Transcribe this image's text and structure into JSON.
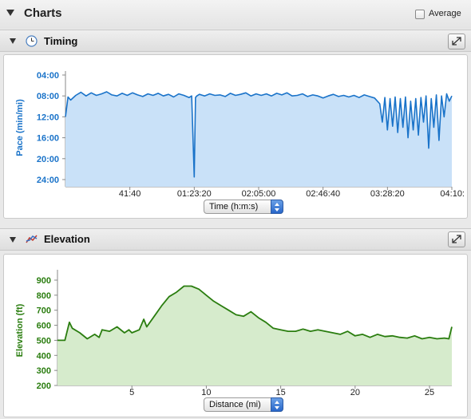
{
  "header": {
    "title": "Charts",
    "average_label": "Average",
    "average_checked": false
  },
  "timing": {
    "title": "Timing",
    "icon": "clock-icon",
    "axis_select": "Time (h:m:s)",
    "color": "#1a73c9",
    "fill": "#c9e1f8"
  },
  "elevation": {
    "title": "Elevation",
    "icon": "elevation-graph-icon",
    "axis_select": "Distance (mi)",
    "color": "#2a7d0f",
    "fill": "#d6ebcc"
  },
  "chart_data": [
    {
      "type": "line",
      "name": "timing",
      "ylabel": "Pace (min/mi)",
      "y_ticks": [
        "04:00",
        "08:00",
        "12:00",
        "16:00",
        "20:00",
        "24:00"
      ],
      "ylim_minutes": [
        4,
        24
      ],
      "y_inverted": true,
      "x_ticks": [
        "41:40",
        "01:23:20",
        "02:05:00",
        "02:46:40",
        "03:28:20",
        "04:10:"
      ],
      "x_tick_seconds": [
        2500,
        5000,
        7500,
        10000,
        12500,
        15000
      ],
      "xlim_seconds": [
        0,
        15000
      ],
      "grid": false,
      "x": [
        0,
        100,
        200,
        400,
        600,
        800,
        1000,
        1200,
        1400,
        1600,
        1800,
        2000,
        2200,
        2400,
        2600,
        2800,
        3000,
        3200,
        3400,
        3600,
        3800,
        4000,
        4200,
        4400,
        4600,
        4800,
        4900,
        5000,
        5050,
        5100,
        5200,
        5400,
        5600,
        5800,
        6000,
        6200,
        6400,
        6600,
        6800,
        7000,
        7200,
        7400,
        7600,
        7800,
        8000,
        8200,
        8400,
        8600,
        8800,
        9000,
        9200,
        9400,
        9600,
        9800,
        10000,
        10200,
        10400,
        10600,
        10800,
        11000,
        11200,
        11400,
        11600,
        11800,
        12000,
        12200,
        12300,
        12400,
        12500,
        12600,
        12700,
        12800,
        12900,
        13000,
        13100,
        13200,
        13300,
        13400,
        13500,
        13600,
        13700,
        13800,
        13900,
        14000,
        14100,
        14200,
        14300,
        14400,
        14500,
        14600,
        14700,
        14800,
        14900,
        15000
      ],
      "y": [
        12.0,
        8.2,
        8.8,
        7.9,
        7.3,
        8.0,
        7.4,
        7.9,
        7.6,
        7.2,
        7.8,
        8.0,
        7.5,
        7.9,
        7.4,
        7.8,
        8.1,
        7.6,
        7.9,
        7.5,
        8.0,
        7.7,
        8.2,
        7.6,
        7.9,
        8.3,
        8.0,
        23.5,
        8.3,
        8.0,
        7.7,
        8.0,
        7.6,
        7.9,
        7.8,
        8.1,
        7.5,
        7.9,
        7.7,
        7.4,
        8.0,
        7.6,
        7.9,
        7.6,
        8.0,
        7.5,
        7.8,
        7.4,
        8.0,
        7.9,
        7.6,
        8.1,
        7.8,
        8.0,
        8.4,
        8.0,
        7.7,
        8.1,
        7.9,
        8.2,
        7.9,
        8.3,
        7.8,
        8.1,
        8.4,
        9.5,
        13.0,
        8.3,
        14.5,
        8.5,
        13.8,
        8.2,
        15.0,
        8.5,
        14.0,
        8.2,
        16.0,
        9.0,
        14.5,
        8.5,
        15.5,
        8.3,
        13.0,
        8.0,
        18.0,
        8.5,
        14.0,
        7.8,
        16.5,
        8.0,
        12.0,
        7.6,
        9.0,
        8.0
      ]
    },
    {
      "type": "area",
      "name": "elevation",
      "ylabel": "Elevation (ft)",
      "y_ticks": [
        200,
        300,
        400,
        500,
        600,
        700,
        800,
        900
      ],
      "ylim": [
        200,
        950
      ],
      "x_ticks": [
        5,
        10,
        15,
        20,
        25
      ],
      "xlim": [
        0,
        26.5
      ],
      "grid": false,
      "x": [
        0,
        0.5,
        0.8,
        1.0,
        1.5,
        2.0,
        2.5,
        2.8,
        3.0,
        3.5,
        4.0,
        4.5,
        4.8,
        5.0,
        5.5,
        5.8,
        6.0,
        6.5,
        7.0,
        7.5,
        8.0,
        8.5,
        9.0,
        9.5,
        10.0,
        10.5,
        11.0,
        11.5,
        12.0,
        12.5,
        13.0,
        13.5,
        14.0,
        14.5,
        15.0,
        15.5,
        16.0,
        16.5,
        17.0,
        17.5,
        18.0,
        18.5,
        19.0,
        19.5,
        20.0,
        20.5,
        21.0,
        21.5,
        22.0,
        22.5,
        23.0,
        23.5,
        24.0,
        24.5,
        25.0,
        25.5,
        26.0,
        26.3,
        26.5
      ],
      "y": [
        500,
        500,
        620,
        580,
        550,
        510,
        540,
        520,
        570,
        560,
        590,
        550,
        570,
        550,
        570,
        640,
        590,
        660,
        730,
        790,
        820,
        860,
        860,
        840,
        800,
        760,
        730,
        700,
        670,
        660,
        690,
        650,
        620,
        580,
        570,
        560,
        560,
        575,
        560,
        570,
        560,
        550,
        540,
        560,
        530,
        540,
        520,
        540,
        525,
        530,
        520,
        515,
        530,
        510,
        520,
        510,
        515,
        510,
        590
      ]
    }
  ]
}
